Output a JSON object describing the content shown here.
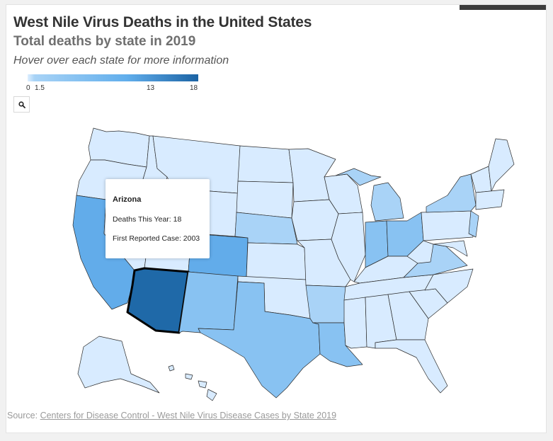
{
  "header": {
    "title": "West Nile Virus Deaths in the United States",
    "subtitle": "Total deaths by state in 2019",
    "hint": "Hover over each state for more information"
  },
  "legend": {
    "ticks": [
      "0",
      "1.5",
      "13",
      "18"
    ],
    "colors": {
      "min": "#deefff",
      "low": "#a8d3f6",
      "mid": "#61aeec",
      "max": "#1b63a4"
    }
  },
  "toolbar": {
    "zoom_icon": "search-icon"
  },
  "map": {
    "fill_colors": {
      "lowest": "#d8ebff",
      "low": "#a9d3f7",
      "medium": "#88c2f2",
      "high": "#62acea",
      "highest": "#1f69a8"
    },
    "highlighted_state": "Arizona"
  },
  "tooltip": {
    "state": "Arizona",
    "deaths_line": "Deaths This Year: 18",
    "first_case_line": "First Reported Case: 2003"
  },
  "footer": {
    "source_label": "Source:",
    "source_link": "Centers for Disease Control - West Nile Virus Disease Cases by State 2019"
  }
}
